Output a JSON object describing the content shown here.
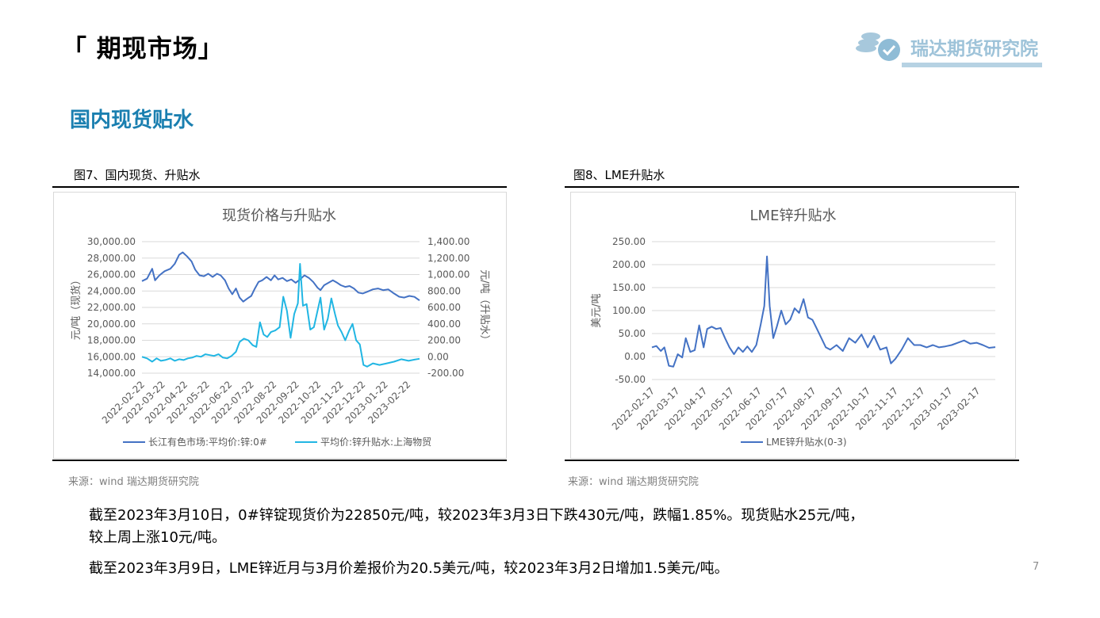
{
  "page": {
    "title": "「 期现市场」",
    "logo_text": "瑞达期货研究院",
    "section_title": "国内现货贴水",
    "page_number": "7",
    "colors": {
      "section": "#1a7fb0",
      "series_dark": "#4472c4",
      "series_light": "#21b6e3",
      "logo": "#9ec3d9"
    }
  },
  "left": {
    "caption": "图7、国内现货、升贴水",
    "source": "来源：wind   瑞达期货研究院"
  },
  "right": {
    "caption": "图8、LME升贴水",
    "source": "来源：wind   瑞达期货研究院"
  },
  "notes": {
    "line1": "截至2023年3月10日，0#锌锭现货价为22850元/吨，较2023年3月3日下跌430元/吨，跌幅1.85%。现货贴水25元/吨，",
    "line2": "较上周上涨10元/吨。",
    "line3": "截至2023年3月9日，LME锌近月与3月价差报价为20.5美元/吨，较2023年3月2日增加1.5美元/吨。"
  },
  "chart_data": [
    {
      "type": "line",
      "title": "现货价格与升贴水",
      "ylabel": "元/吨（现货）",
      "y2label": "元/吨（升贴水）",
      "x_range": [
        "2022-02-22",
        "2023-03-10"
      ],
      "x_ticks": [
        "2022-02-22",
        "2022-03-22",
        "2022-04-22",
        "2022-05-22",
        "2022-06-22",
        "2022-07-22",
        "2022-08-22",
        "2022-09-22",
        "2022-10-22",
        "2022-11-22",
        "2022-12-22",
        "2023-01-22",
        "2023-02-22"
      ],
      "ylim": [
        14000,
        30000
      ],
      "y_ticks": [
        "30,000.00",
        "28,000.00",
        "26,000.00",
        "24,000.00",
        "22,000.00",
        "20,000.00",
        "18,000.00",
        "16,000.00",
        "14,000.00"
      ],
      "y2lim": [
        -200,
        1400
      ],
      "y2_ticks": [
        "1,400.00",
        "1,200.00",
        "1,000.00",
        "800.00",
        "600.00",
        "400.00",
        "200.00",
        "0.00",
        "-200.00"
      ],
      "legend": "bottom",
      "grid": true,
      "series": [
        {
          "name": "长江有色市场:平均价:锌:0#",
          "axis": "left",
          "color": "#4472c4",
          "points": [
            [
              "2022-02-22",
              25200
            ],
            [
              "2022-03-01",
              25500
            ],
            [
              "2022-03-08",
              26700
            ],
            [
              "2022-03-12",
              25300
            ],
            [
              "2022-03-18",
              25900
            ],
            [
              "2022-03-25",
              26400
            ],
            [
              "2022-04-02",
              26700
            ],
            [
              "2022-04-08",
              27300
            ],
            [
              "2022-04-14",
              28400
            ],
            [
              "2022-04-19",
              28700
            ],
            [
              "2022-04-25",
              28200
            ],
            [
              "2022-05-01",
              27600
            ],
            [
              "2022-05-06",
              26600
            ],
            [
              "2022-05-12",
              25900
            ],
            [
              "2022-05-18",
              25800
            ],
            [
              "2022-05-24",
              26100
            ],
            [
              "2022-05-30",
              25700
            ],
            [
              "2022-06-05",
              26100
            ],
            [
              "2022-06-10",
              25900
            ],
            [
              "2022-06-16",
              25300
            ],
            [
              "2022-06-21",
              24300
            ],
            [
              "2022-06-26",
              23600
            ],
            [
              "2022-07-01",
              24300
            ],
            [
              "2022-07-06",
              23200
            ],
            [
              "2022-07-11",
              22700
            ],
            [
              "2022-07-17",
              23100
            ],
            [
              "2022-07-22",
              23400
            ],
            [
              "2022-07-27",
              24300
            ],
            [
              "2022-08-01",
              25100
            ],
            [
              "2022-08-06",
              25300
            ],
            [
              "2022-08-12",
              25700
            ],
            [
              "2022-08-18",
              25300
            ],
            [
              "2022-08-23",
              25900
            ],
            [
              "2022-08-28",
              25400
            ],
            [
              "2022-09-03",
              25600
            ],
            [
              "2022-09-09",
              25200
            ],
            [
              "2022-09-15",
              25400
            ],
            [
              "2022-09-21",
              25000
            ],
            [
              "2022-09-27",
              25400
            ],
            [
              "2022-10-03",
              25900
            ],
            [
              "2022-10-09",
              25600
            ],
            [
              "2022-10-15",
              25100
            ],
            [
              "2022-10-21",
              24400
            ],
            [
              "2022-10-25",
              24100
            ],
            [
              "2022-10-30",
              24700
            ],
            [
              "2022-11-05",
              25000
            ],
            [
              "2022-11-11",
              25300
            ],
            [
              "2022-11-17",
              25000
            ],
            [
              "2022-11-22",
              24700
            ],
            [
              "2022-11-28",
              24500
            ],
            [
              "2022-12-04",
              24600
            ],
            [
              "2022-12-10",
              24300
            ],
            [
              "2022-12-16",
              23800
            ],
            [
              "2022-12-22",
              23700
            ],
            [
              "2022-12-28",
              23900
            ],
            [
              "2023-01-05",
              24200
            ],
            [
              "2023-01-12",
              24300
            ],
            [
              "2023-01-19",
              24100
            ],
            [
              "2023-01-26",
              24200
            ],
            [
              "2023-02-03",
              23700
            ],
            [
              "2023-02-10",
              23300
            ],
            [
              "2023-02-17",
              23200
            ],
            [
              "2023-02-24",
              23400
            ],
            [
              "2023-03-03",
              23280
            ],
            [
              "2023-03-10",
              22850
            ]
          ]
        },
        {
          "name": "平均价:锌升贴水:上海物贸",
          "axis": "right",
          "color": "#21b6e3",
          "points": [
            [
              "2022-02-22",
              0
            ],
            [
              "2022-03-01",
              -20
            ],
            [
              "2022-03-08",
              -60
            ],
            [
              "2022-03-14",
              -20
            ],
            [
              "2022-03-20",
              -50
            ],
            [
              "2022-03-26",
              -40
            ],
            [
              "2022-04-02",
              -20
            ],
            [
              "2022-04-08",
              -50
            ],
            [
              "2022-04-14",
              -30
            ],
            [
              "2022-04-20",
              -40
            ],
            [
              "2022-04-26",
              -20
            ],
            [
              "2022-05-02",
              -10
            ],
            [
              "2022-05-08",
              10
            ],
            [
              "2022-05-14",
              0
            ],
            [
              "2022-05-20",
              30
            ],
            [
              "2022-05-26",
              20
            ],
            [
              "2022-06-01",
              10
            ],
            [
              "2022-06-07",
              30
            ],
            [
              "2022-06-13",
              -10
            ],
            [
              "2022-06-19",
              -20
            ],
            [
              "2022-06-25",
              10
            ],
            [
              "2022-07-01",
              60
            ],
            [
              "2022-07-06",
              180
            ],
            [
              "2022-07-12",
              220
            ],
            [
              "2022-07-18",
              200
            ],
            [
              "2022-07-24",
              140
            ],
            [
              "2022-07-29",
              120
            ],
            [
              "2022-08-03",
              420
            ],
            [
              "2022-08-08",
              270
            ],
            [
              "2022-08-13",
              240
            ],
            [
              "2022-08-18",
              300
            ],
            [
              "2022-08-24",
              320
            ],
            [
              "2022-08-30",
              360
            ],
            [
              "2022-09-04",
              730
            ],
            [
              "2022-09-09",
              560
            ],
            [
              "2022-09-14",
              230
            ],
            [
              "2022-09-19",
              520
            ],
            [
              "2022-09-24",
              650
            ],
            [
              "2022-09-27",
              1130
            ],
            [
              "2022-10-01",
              620
            ],
            [
              "2022-10-06",
              640
            ],
            [
              "2022-10-11",
              330
            ],
            [
              "2022-10-16",
              360
            ],
            [
              "2022-10-21",
              560
            ],
            [
              "2022-10-25",
              720
            ],
            [
              "2022-10-30",
              330
            ],
            [
              "2022-11-04",
              460
            ],
            [
              "2022-11-09",
              710
            ],
            [
              "2022-11-14",
              520
            ],
            [
              "2022-11-18",
              380
            ],
            [
              "2022-11-23",
              300
            ],
            [
              "2022-11-28",
              200
            ],
            [
              "2022-12-03",
              310
            ],
            [
              "2022-12-08",
              400
            ],
            [
              "2022-12-13",
              200
            ],
            [
              "2022-12-18",
              150
            ],
            [
              "2022-12-23",
              -100
            ],
            [
              "2022-12-28",
              -120
            ],
            [
              "2023-01-05",
              -80
            ],
            [
              "2023-01-14",
              -100
            ],
            [
              "2023-01-24",
              -80
            ],
            [
              "2023-02-03",
              -60
            ],
            [
              "2023-02-13",
              -30
            ],
            [
              "2023-02-23",
              -50
            ],
            [
              "2023-03-03",
              -35
            ],
            [
              "2023-03-10",
              -25
            ]
          ]
        }
      ]
    },
    {
      "type": "line",
      "title": "LME锌升贴水",
      "ylabel": "美元/吨",
      "x_range": [
        "2022-02-17",
        "2023-03-09"
      ],
      "x_ticks": [
        "2022-02-17",
        "2022-03-17",
        "2022-04-17",
        "2022-05-17",
        "2022-06-17",
        "2022-07-17",
        "2022-08-17",
        "2022-09-17",
        "2022-10-17",
        "2022-11-17",
        "2022-12-17",
        "2023-01-17",
        "2023-02-17"
      ],
      "ylim": [
        -50,
        250
      ],
      "y_ticks": [
        "250.00",
        "200.00",
        "150.00",
        "100.00",
        "50.00",
        "0.00",
        "-50.00"
      ],
      "legend": "bottom",
      "grid": true,
      "series": [
        {
          "name": "LME锌升贴水(0-3)",
          "color": "#4472c4",
          "points": [
            [
              "2022-02-17",
              20
            ],
            [
              "2022-02-22",
              23
            ],
            [
              "2022-02-27",
              12
            ],
            [
              "2022-03-03",
              20
            ],
            [
              "2022-03-08",
              -20
            ],
            [
              "2022-03-13",
              -22
            ],
            [
              "2022-03-18",
              5
            ],
            [
              "2022-03-23",
              -2
            ],
            [
              "2022-03-27",
              40
            ],
            [
              "2022-04-01",
              10
            ],
            [
              "2022-04-06",
              14
            ],
            [
              "2022-04-11",
              68
            ],
            [
              "2022-04-16",
              20
            ],
            [
              "2022-04-20",
              60
            ],
            [
              "2022-04-25",
              65
            ],
            [
              "2022-04-30",
              60
            ],
            [
              "2022-05-05",
              62
            ],
            [
              "2022-05-10",
              40
            ],
            [
              "2022-05-15",
              20
            ],
            [
              "2022-05-20",
              5
            ],
            [
              "2022-05-25",
              20
            ],
            [
              "2022-05-30",
              10
            ],
            [
              "2022-06-04",
              22
            ],
            [
              "2022-06-09",
              10
            ],
            [
              "2022-06-14",
              25
            ],
            [
              "2022-06-19",
              70
            ],
            [
              "2022-06-23",
              110
            ],
            [
              "2022-06-26",
              218
            ],
            [
              "2022-06-29",
              110
            ],
            [
              "2022-07-03",
              40
            ],
            [
              "2022-07-07",
              65
            ],
            [
              "2022-07-12",
              100
            ],
            [
              "2022-07-17",
              70
            ],
            [
              "2022-07-22",
              80
            ],
            [
              "2022-07-27",
              105
            ],
            [
              "2022-08-01",
              95
            ],
            [
              "2022-08-06",
              125
            ],
            [
              "2022-08-11",
              85
            ],
            [
              "2022-08-16",
              80
            ],
            [
              "2022-08-21",
              60
            ],
            [
              "2022-08-26",
              40
            ],
            [
              "2022-08-31",
              20
            ],
            [
              "2022-09-05",
              15
            ],
            [
              "2022-09-12",
              25
            ],
            [
              "2022-09-19",
              12
            ],
            [
              "2022-09-26",
              40
            ],
            [
              "2022-10-03",
              30
            ],
            [
              "2022-10-10",
              48
            ],
            [
              "2022-10-17",
              20
            ],
            [
              "2022-10-24",
              45
            ],
            [
              "2022-10-31",
              15
            ],
            [
              "2022-11-07",
              20
            ],
            [
              "2022-11-12",
              -15
            ],
            [
              "2022-11-17",
              -5
            ],
            [
              "2022-11-24",
              15
            ],
            [
              "2022-12-01",
              40
            ],
            [
              "2022-12-08",
              25
            ],
            [
              "2022-12-15",
              25
            ],
            [
              "2022-12-22",
              20
            ],
            [
              "2022-12-29",
              25
            ],
            [
              "2023-01-05",
              20
            ],
            [
              "2023-01-12",
              22
            ],
            [
              "2023-01-19",
              25
            ],
            [
              "2023-01-26",
              30
            ],
            [
              "2023-02-02",
              35
            ],
            [
              "2023-02-09",
              28
            ],
            [
              "2023-02-16",
              30
            ],
            [
              "2023-02-23",
              25
            ],
            [
              "2023-03-02",
              19
            ],
            [
              "2023-03-09",
              20.5
            ]
          ]
        }
      ]
    }
  ]
}
